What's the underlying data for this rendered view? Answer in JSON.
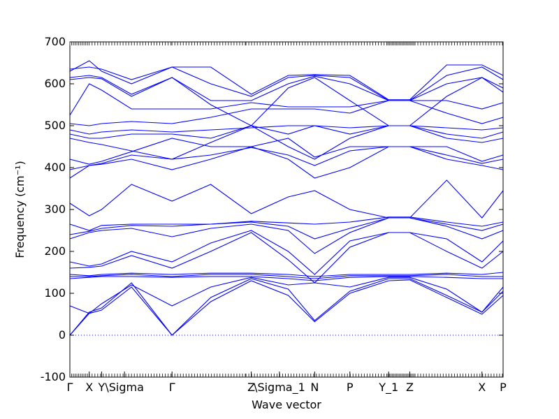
{
  "chart_data": {
    "type": "line",
    "xlabel": "Wave vector",
    "ylabel": "Frequency (cm⁻¹)",
    "ylim": [
      -100,
      700
    ],
    "yticks": [
      -100,
      0,
      100,
      200,
      300,
      400,
      500,
      600,
      700
    ],
    "xlim": [
      0,
      12.3
    ],
    "xticks": [
      {
        "x": 0.0,
        "label": "Γ"
      },
      {
        "x": 0.55,
        "label": "X"
      },
      {
        "x": 0.9,
        "label": "Y"
      },
      {
        "x": 1.55,
        "label": "\\Sigma"
      },
      {
        "x": 2.9,
        "label": "Γ"
      },
      {
        "x": 5.15,
        "label": "Z"
      },
      {
        "x": 5.95,
        "label": "\\Sigma_1"
      },
      {
        "x": 6.95,
        "label": "N"
      },
      {
        "x": 7.95,
        "label": "P"
      },
      {
        "x": 9.05,
        "label": "Y_1"
      },
      {
        "x": 9.65,
        "label": "Z"
      },
      {
        "x": 11.7,
        "label": "X"
      },
      {
        "x": 12.3,
        "label": "P"
      }
    ],
    "zero_line": {
      "y": 0,
      "color": "#0000ff",
      "style": "dotted"
    },
    "line_color": "#0000ff",
    "series": [
      {
        "x": [
          0,
          0.55,
          0.9,
          1.75,
          2.9,
          4.0,
          5.15,
          6.2,
          6.95,
          7.95,
          9.05,
          9.65,
          10.7,
          11.7,
          12.3
        ],
        "y": [
          0,
          52,
          60,
          115,
          0,
          80,
          130,
          95,
          32,
          100,
          130,
          132,
          90,
          50,
          95
        ]
      },
      {
        "x": [
          0,
          0.55,
          0.9,
          1.75,
          2.9,
          4.0,
          5.15,
          6.2,
          6.95,
          7.95,
          9.05,
          9.65,
          10.7,
          11.7,
          12.3
        ],
        "y": [
          0,
          55,
          65,
          125,
          0,
          90,
          135,
          110,
          35,
          105,
          135,
          135,
          95,
          55,
          105
        ]
      },
      {
        "x": [
          0,
          0.55,
          0.9,
          1.75,
          2.9,
          4.0,
          5.15,
          6.2,
          6.95,
          7.95,
          9.05,
          9.65,
          10.7,
          11.7,
          12.3
        ],
        "y": [
          70,
          52,
          75,
          120,
          70,
          115,
          138,
          120,
          125,
          115,
          138,
          138,
          110,
          55,
          115
        ]
      },
      {
        "x": [
          0,
          0.55,
          0.9,
          1.75,
          2.9,
          4.0,
          5.15,
          6.2,
          6.95,
          7.95,
          9.05,
          9.65,
          10.7,
          11.7,
          12.3
        ],
        "y": [
          135,
          138,
          140,
          140,
          138,
          140,
          140,
          135,
          130,
          138,
          140,
          140,
          138,
          135,
          135
        ]
      },
      {
        "x": [
          0,
          0.55,
          0.9,
          1.75,
          2.9,
          4.0,
          5.15,
          6.2,
          6.95,
          7.95,
          9.05,
          9.65,
          10.7,
          11.7,
          12.3
        ],
        "y": [
          140,
          140,
          142,
          145,
          140,
          145,
          145,
          140,
          135,
          142,
          142,
          142,
          145,
          140,
          140
        ]
      },
      {
        "x": [
          0,
          0.55,
          0.9,
          1.75,
          2.9,
          4.0,
          5.15,
          6.2,
          6.95,
          7.95,
          9.05,
          9.65,
          10.7,
          11.7,
          12.3
        ],
        "y": [
          145,
          142,
          145,
          148,
          145,
          148,
          148,
          145,
          140,
          145,
          145,
          145,
          148,
          145,
          150
        ]
      },
      {
        "x": [
          0,
          0.55,
          0.9,
          1.75,
          2.9,
          4.0,
          5.15,
          6.2,
          6.95,
          7.95,
          9.05,
          9.65,
          10.7,
          11.7,
          12.3
        ],
        "y": [
          160,
          162,
          165,
          190,
          160,
          200,
          245,
          180,
          125,
          210,
          245,
          245,
          200,
          160,
          200
        ]
      },
      {
        "x": [
          0,
          0.55,
          0.9,
          1.75,
          2.9,
          4.0,
          5.15,
          6.2,
          6.95,
          7.95,
          9.05,
          9.65,
          10.7,
          11.7,
          12.3
        ],
        "y": [
          175,
          165,
          170,
          200,
          175,
          220,
          250,
          200,
          145,
          225,
          245,
          245,
          230,
          175,
          225
        ]
      },
      {
        "x": [
          0,
          0.55,
          0.9,
          1.75,
          2.9,
          4.0,
          5.15,
          6.2,
          6.95,
          7.95,
          9.05,
          9.65,
          10.7,
          11.7,
          12.3
        ],
        "y": [
          230,
          245,
          250,
          255,
          235,
          255,
          265,
          250,
          195,
          245,
          280,
          280,
          260,
          230,
          250
        ]
      },
      {
        "x": [
          0,
          0.55,
          0.9,
          1.75,
          2.9,
          4.0,
          5.15,
          6.2,
          6.95,
          7.95,
          9.05,
          9.65,
          10.7,
          11.7,
          12.3
        ],
        "y": [
          240,
          248,
          255,
          262,
          260,
          265,
          270,
          260,
          230,
          255,
          280,
          280,
          265,
          250,
          265
        ]
      },
      {
        "x": [
          0,
          0.55,
          0.9,
          1.75,
          2.9,
          4.0,
          5.15,
          6.2,
          6.95,
          7.95,
          9.05,
          9.65,
          10.7,
          11.7,
          12.3
        ],
        "y": [
          265,
          250,
          262,
          265,
          265,
          265,
          272,
          268,
          265,
          270,
          282,
          282,
          270,
          260,
          270
        ]
      },
      {
        "x": [
          0,
          0.55,
          0.9,
          1.75,
          2.9,
          4.0,
          5.15,
          6.2,
          6.95,
          7.95,
          9.05,
          9.65,
          10.7,
          11.7,
          12.3
        ],
        "y": [
          315,
          285,
          300,
          360,
          320,
          360,
          290,
          330,
          345,
          300,
          280,
          280,
          370,
          280,
          345
        ]
      },
      {
        "x": [
          0,
          0.55,
          0.9,
          1.75,
          2.9,
          4.0,
          5.15,
          6.2,
          6.95,
          7.95,
          9.05,
          9.65,
          10.7,
          11.7,
          12.3
        ],
        "y": [
          375,
          405,
          408,
          420,
          395,
          420,
          450,
          420,
          375,
          400,
          450,
          450,
          420,
          405,
          395
        ]
      },
      {
        "x": [
          0,
          0.55,
          0.9,
          1.75,
          2.9,
          4.0,
          5.15,
          6.2,
          6.95,
          7.95,
          9.05,
          9.65,
          10.7,
          11.7,
          12.3
        ],
        "y": [
          395,
          405,
          410,
          430,
          420,
          430,
          448,
          430,
          405,
          440,
          450,
          450,
          430,
          410,
          420
        ]
      },
      {
        "x": [
          0,
          0.55,
          0.9,
          1.75,
          2.9,
          4.0,
          5.15,
          6.2,
          6.95,
          7.95,
          9.05,
          9.65,
          10.7,
          11.7,
          12.3
        ],
        "y": [
          420,
          408,
          415,
          438,
          470,
          450,
          450,
          470,
          425,
          450,
          450,
          450,
          450,
          415,
          430
        ]
      },
      {
        "x": [
          0,
          0.55,
          0.9,
          1.75,
          2.9,
          4.0,
          5.15,
          6.2,
          6.95,
          7.95,
          9.05,
          9.65,
          10.7,
          11.7,
          12.3
        ],
        "y": [
          470,
          460,
          455,
          440,
          420,
          460,
          500,
          450,
          420,
          470,
          500,
          500,
          470,
          460,
          470
        ]
      },
      {
        "x": [
          0,
          0.55,
          0.9,
          1.75,
          2.9,
          4.0,
          5.15,
          6.2,
          6.95,
          7.95,
          9.05,
          9.65,
          10.7,
          11.7,
          12.3
        ],
        "y": [
          480,
          470,
          470,
          480,
          480,
          470,
          500,
          480,
          500,
          480,
          500,
          500,
          480,
          470,
          485
        ]
      },
      {
        "x": [
          0,
          0.55,
          0.9,
          1.75,
          2.9,
          4.0,
          5.15,
          6.2,
          6.95,
          7.95,
          9.05,
          9.65,
          10.7,
          11.7,
          12.3
        ],
        "y": [
          490,
          480,
          485,
          490,
          485,
          490,
          495,
          500,
          500,
          495,
          500,
          500,
          495,
          490,
          495
        ]
      },
      {
        "x": [
          0,
          0.55,
          0.9,
          1.75,
          2.9,
          4.0,
          5.15,
          6.2,
          6.95,
          7.95,
          9.05,
          9.65,
          10.7,
          11.7,
          12.3
        ],
        "y": [
          505,
          500,
          505,
          510,
          505,
          520,
          540,
          540,
          540,
          530,
          560,
          560,
          530,
          505,
          520
        ]
      },
      {
        "x": [
          0,
          0.55,
          0.9,
          1.75,
          2.9,
          4.0,
          5.15,
          6.2,
          6.95,
          7.95,
          9.05,
          9.65,
          10.7,
          11.7,
          12.3
        ],
        "y": [
          525,
          600,
          585,
          540,
          540,
          540,
          555,
          545,
          545,
          545,
          560,
          560,
          560,
          540,
          555
        ]
      },
      {
        "x": [
          0,
          0.55,
          0.9,
          1.75,
          2.9,
          4.0,
          5.15,
          6.2,
          6.95,
          7.95,
          9.05,
          9.65,
          10.7,
          11.7,
          12.3
        ],
        "y": [
          610,
          615,
          612,
          570,
          615,
          550,
          500,
          590,
          615,
          560,
          500,
          500,
          570,
          615,
          580
        ]
      },
      {
        "x": [
          0,
          0.55,
          0.9,
          1.75,
          2.9,
          4.0,
          5.15,
          6.2,
          6.95,
          7.95,
          9.05,
          9.65,
          10.7,
          11.7,
          12.3
        ],
        "y": [
          615,
          620,
          615,
          575,
          615,
          560,
          560,
          600,
          618,
          600,
          560,
          560,
          600,
          615,
          590
        ]
      },
      {
        "x": [
          0,
          0.55,
          0.9,
          1.75,
          2.9,
          4.0,
          5.15,
          6.2,
          6.95,
          7.95,
          9.05,
          9.65,
          10.7,
          11.7,
          12.3
        ],
        "y": [
          630,
          655,
          630,
          600,
          640,
          600,
          570,
          615,
          620,
          615,
          560,
          560,
          620,
          640,
          610
        ]
      },
      {
        "x": [
          0,
          0.55,
          0.9,
          1.75,
          2.9,
          4.0,
          5.15,
          6.2,
          6.95,
          7.95,
          9.05,
          9.65,
          10.7,
          11.7,
          12.3
        ],
        "y": [
          635,
          640,
          635,
          610,
          640,
          640,
          575,
          620,
          622,
          620,
          562,
          562,
          645,
          645,
          620
        ]
      }
    ]
  }
}
